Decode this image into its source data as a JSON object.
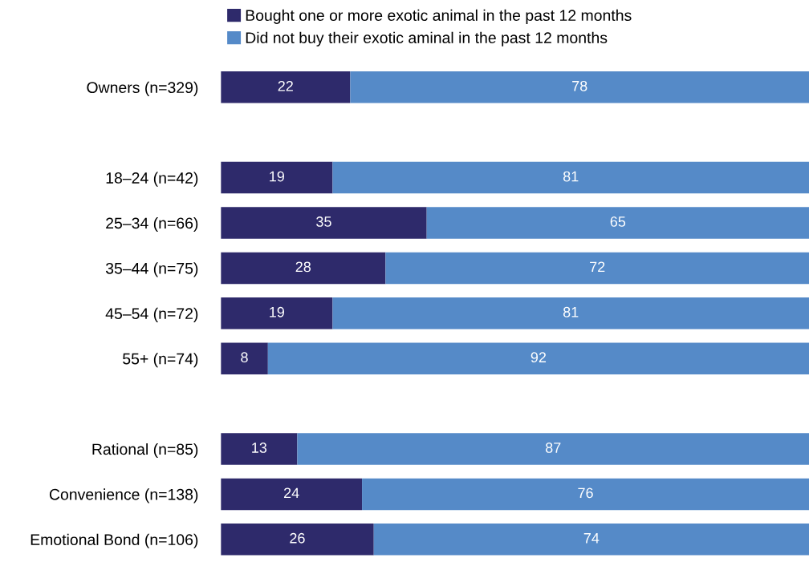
{
  "chart_data": {
    "type": "bar",
    "orientation": "horizontal",
    "stacked": true,
    "categories": [
      "Owners (n=329)",
      null,
      "18–24 (n=42)",
      "25–34 (n=66)",
      "35–44 (n=75)",
      "45–54 (n=72)",
      "55+ (n=74)",
      null,
      "Rational (n=85)",
      "Convenience (n=138)",
      "Emotional Bond (n=106)"
    ],
    "series": [
      {
        "name": "Bought one or more exotic animal in the past 12 months",
        "color": "#2e2a6b",
        "values": [
          22,
          null,
          19,
          35,
          28,
          19,
          8,
          null,
          13,
          24,
          26
        ]
      },
      {
        "name": "Did not buy their exotic aminal in the past 12 months",
        "color": "#558ac8",
        "values": [
          78,
          null,
          81,
          65,
          72,
          81,
          92,
          null,
          87,
          76,
          74
        ]
      }
    ],
    "xlim": [
      0,
      100
    ],
    "tick_labels": "y",
    "data_labels": true,
    "legend": "top",
    "grid": false
  }
}
